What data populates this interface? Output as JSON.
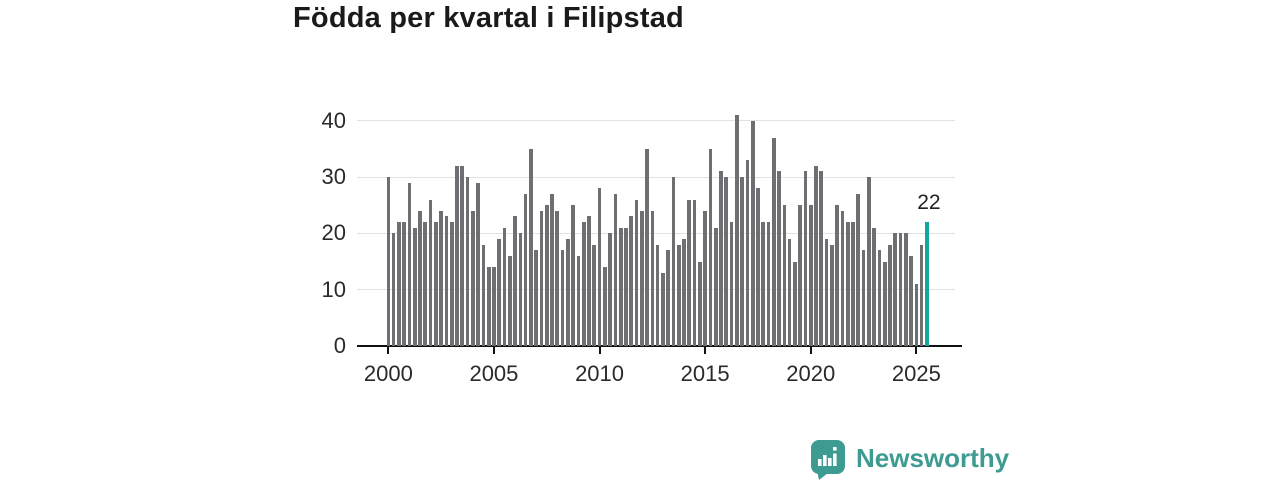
{
  "title": "Födda per kvartal i Filipstad",
  "chart_data": {
    "type": "bar",
    "title": "Födda per kvartal i Filipstad",
    "x_unit": "quarter",
    "x_start_quarter": "2000-Q1",
    "x_end_quarter": "2025-Q3",
    "note": "values are consecutive quarters from 2000-Q1 to 2025-Q3; last bar highlighted in teal with data label",
    "values": [
      30,
      20,
      22,
      22,
      29,
      21,
      24,
      22,
      26,
      22,
      24,
      23,
      22,
      32,
      32,
      30,
      24,
      29,
      18,
      14,
      14,
      19,
      21,
      16,
      23,
      20,
      27,
      35,
      17,
      24,
      25,
      27,
      24,
      17,
      19,
      25,
      16,
      22,
      23,
      18,
      28,
      14,
      20,
      27,
      21,
      21,
      23,
      26,
      24,
      35,
      24,
      18,
      13,
      17,
      30,
      18,
      19,
      26,
      26,
      15,
      24,
      35,
      21,
      31,
      30,
      22,
      41,
      30,
      33,
      40,
      28,
      22,
      22,
      37,
      31,
      25,
      19,
      15,
      25,
      31,
      25,
      32,
      31,
      19,
      18,
      25,
      24,
      22,
      22,
      27,
      17,
      30,
      21,
      17,
      15,
      18,
      20,
      20,
      20,
      16,
      11,
      18,
      22
    ],
    "last_value_label": "22",
    "yticks": [
      0,
      10,
      20,
      30,
      40
    ],
    "ylim": [
      0,
      44
    ],
    "xticks": [
      "2000",
      "2005",
      "2010",
      "2015",
      "2020",
      "2025"
    ],
    "grid": "horizontal",
    "legend": "none",
    "colors": {
      "bar": "#6e6e73",
      "highlight": "#14a79b"
    }
  },
  "branding": {
    "logo_text": "Newsworthy",
    "logo_color": "#3d9b91",
    "logo_icon": "speech-bubble-bar-chart-exclamation"
  }
}
